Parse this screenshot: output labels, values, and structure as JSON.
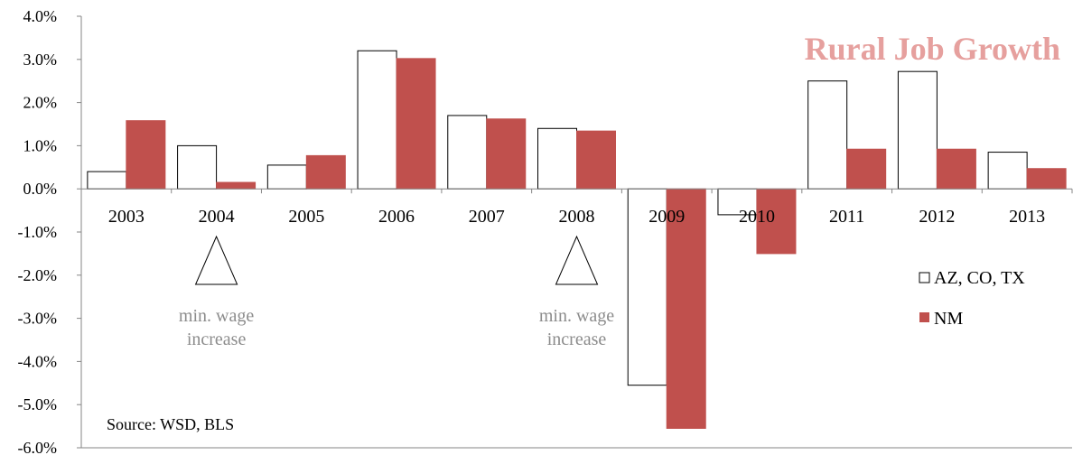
{
  "chart_data": {
    "type": "bar",
    "title": "Rural Job Growth",
    "categories": [
      "2003",
      "2004",
      "2005",
      "2006",
      "2007",
      "2008",
      "2009",
      "2010",
      "2011",
      "2012",
      "2013"
    ],
    "series": [
      {
        "name": "AZ, CO, TX",
        "values": [
          0.4,
          1.0,
          0.55,
          3.2,
          1.7,
          1.4,
          -4.55,
          -0.6,
          2.5,
          2.72,
          0.85
        ],
        "fill": "#ffffff",
        "stroke": "#000000"
      },
      {
        "name": "NM",
        "values": [
          1.58,
          0.15,
          0.77,
          3.02,
          1.62,
          1.34,
          -5.55,
          -1.5,
          0.92,
          0.92,
          0.47
        ],
        "fill": "#c0504d",
        "stroke": "#c0504d"
      }
    ],
    "ylim": [
      -6,
      4
    ],
    "yticks": [
      "4.0%",
      "3.0%",
      "2.0%",
      "1.0%",
      "0.0%",
      "-1.0%",
      "-2.0%",
      "-3.0%",
      "-4.0%",
      "-5.0%",
      "-6.0%"
    ],
    "ytick_values": [
      4,
      3,
      2,
      1,
      0,
      -1,
      -2,
      -3,
      -4,
      -5,
      -6
    ],
    "grid": false,
    "legend_position": "right",
    "title_color": "#e6a09e",
    "annotations": [
      {
        "category": "2004",
        "line1": "min. wage",
        "line2": "increase",
        "icon": "triangle-icon"
      },
      {
        "category": "2008",
        "line1": "min. wage",
        "line2": "increase",
        "icon": "triangle-icon"
      }
    ],
    "source": "Source: WSD, BLS"
  }
}
